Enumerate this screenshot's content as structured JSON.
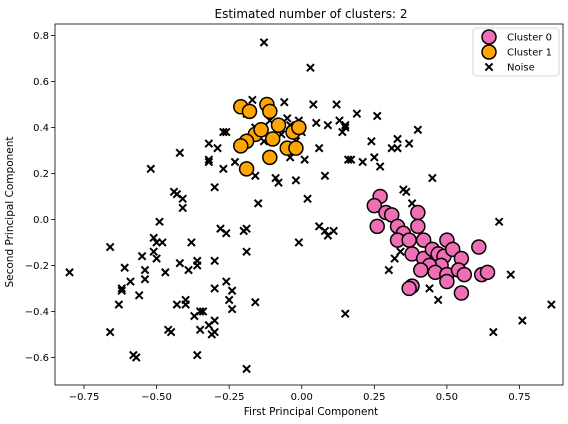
{
  "chart_data": {
    "type": "scatter",
    "title": "Estimated number of clusters: 2",
    "xlabel": "First Principal Component",
    "ylabel": "Second Principal Component",
    "xlim": [
      -0.85,
      0.9
    ],
    "ylim": [
      -0.72,
      0.85
    ],
    "x_ticks": [
      -0.75,
      -0.5,
      -0.25,
      0.0,
      0.25,
      0.5,
      0.75
    ],
    "y_ticks": [
      -0.6,
      -0.4,
      -0.2,
      0.0,
      0.2,
      0.4,
      0.6,
      0.8
    ],
    "x_tick_labels": [
      "−0.75",
      "−0.50",
      "−0.25",
      "0.00",
      "0.25",
      "0.50",
      "0.75"
    ],
    "y_tick_labels": [
      "−0.6",
      "−0.4",
      "−0.2",
      "0.0",
      "0.2",
      "0.4",
      "0.6",
      "0.8"
    ],
    "grid": false,
    "legend_position": "top-right",
    "series": [
      {
        "name": "Cluster 0",
        "marker": "circle",
        "color": "#f06eb4",
        "points": [
          [
            0.27,
            0.1
          ],
          [
            0.25,
            0.06
          ],
          [
            0.29,
            0.03
          ],
          [
            0.31,
            0.02
          ],
          [
            0.26,
            -0.03
          ],
          [
            0.33,
            -0.03
          ],
          [
            0.35,
            -0.06
          ],
          [
            0.33,
            -0.09
          ],
          [
            0.37,
            -0.09
          ],
          [
            0.4,
            0.03
          ],
          [
            0.4,
            -0.03
          ],
          [
            0.42,
            -0.09
          ],
          [
            0.38,
            -0.15
          ],
          [
            0.42,
            -0.17
          ],
          [
            0.45,
            -0.13
          ],
          [
            0.47,
            -0.15
          ],
          [
            0.49,
            -0.16
          ],
          [
            0.5,
            -0.09
          ],
          [
            0.52,
            -0.13
          ],
          [
            0.55,
            -0.17
          ],
          [
            0.48,
            -0.2
          ],
          [
            0.44,
            -0.2
          ],
          [
            0.46,
            -0.23
          ],
          [
            0.5,
            -0.24
          ],
          [
            0.54,
            -0.22
          ],
          [
            0.5,
            -0.27
          ],
          [
            0.56,
            -0.24
          ],
          [
            0.55,
            -0.32
          ],
          [
            0.61,
            -0.12
          ],
          [
            0.62,
            -0.24
          ],
          [
            0.64,
            -0.23
          ],
          [
            0.38,
            -0.29
          ],
          [
            0.41,
            -0.22
          ],
          [
            0.37,
            -0.3
          ]
        ]
      },
      {
        "name": "Cluster 1",
        "marker": "circle",
        "color": "#ffa500",
        "points": [
          [
            -0.21,
            0.49
          ],
          [
            -0.18,
            0.47
          ],
          [
            -0.16,
            0.37
          ],
          [
            -0.19,
            0.34
          ],
          [
            -0.21,
            0.32
          ],
          [
            -0.14,
            0.39
          ],
          [
            -0.12,
            0.5
          ],
          [
            -0.11,
            0.47
          ],
          [
            -0.1,
            0.35
          ],
          [
            -0.08,
            0.41
          ],
          [
            -0.05,
            0.31
          ],
          [
            -0.03,
            0.38
          ],
          [
            -0.02,
            0.31
          ],
          [
            -0.01,
            0.4
          ],
          [
            -0.11,
            0.27
          ],
          [
            -0.19,
            0.22
          ]
        ]
      },
      {
        "name": "Noise",
        "marker": "x",
        "color": "#000000",
        "points": [
          [
            -0.8,
            -0.23
          ],
          [
            -0.66,
            -0.12
          ],
          [
            -0.66,
            -0.49
          ],
          [
            -0.63,
            -0.37
          ],
          [
            -0.62,
            -0.3
          ],
          [
            -0.62,
            -0.31
          ],
          [
            -0.61,
            -0.21
          ],
          [
            -0.59,
            -0.27
          ],
          [
            -0.58,
            -0.59
          ],
          [
            -0.57,
            -0.6
          ],
          [
            -0.56,
            -0.33
          ],
          [
            -0.55,
            -0.16
          ],
          [
            -0.54,
            -0.26
          ],
          [
            -0.54,
            -0.22
          ],
          [
            -0.52,
            0.22
          ],
          [
            -0.51,
            -0.08
          ],
          [
            -0.51,
            -0.14
          ],
          [
            -0.5,
            -0.1
          ],
          [
            -0.5,
            -0.17
          ],
          [
            -0.49,
            -0.01
          ],
          [
            -0.48,
            -0.1
          ],
          [
            -0.47,
            -0.23
          ],
          [
            -0.46,
            -0.48
          ],
          [
            -0.45,
            -0.49
          ],
          [
            -0.44,
            0.12
          ],
          [
            -0.43,
            0.11
          ],
          [
            -0.43,
            -0.37
          ],
          [
            -0.42,
            -0.19
          ],
          [
            -0.42,
            0.29
          ],
          [
            -0.41,
            0.05
          ],
          [
            -0.41,
            0.09
          ],
          [
            -0.4,
            -0.35
          ],
          [
            -0.4,
            -0.37
          ],
          [
            -0.39,
            -0.22
          ],
          [
            -0.38,
            -0.1
          ],
          [
            -0.37,
            -0.42
          ],
          [
            -0.36,
            -0.18
          ],
          [
            -0.36,
            -0.2
          ],
          [
            -0.36,
            -0.59
          ],
          [
            -0.35,
            -0.4
          ],
          [
            -0.35,
            -0.48
          ],
          [
            -0.34,
            -0.4
          ],
          [
            -0.32,
            0.33
          ],
          [
            -0.32,
            0.26
          ],
          [
            -0.32,
            0.25
          ],
          [
            -0.32,
            -0.46
          ],
          [
            -0.31,
            -0.5
          ],
          [
            -0.3,
            -0.49
          ],
          [
            -0.3,
            -0.44
          ],
          [
            -0.3,
            -0.3
          ],
          [
            -0.3,
            -0.18
          ],
          [
            -0.3,
            0.14
          ],
          [
            -0.29,
            0.31
          ],
          [
            -0.28,
            -0.04
          ],
          [
            -0.27,
            0.22
          ],
          [
            -0.27,
            0.38
          ],
          [
            -0.26,
            0.38
          ],
          [
            -0.26,
            -0.27
          ],
          [
            -0.26,
            -0.06
          ],
          [
            -0.25,
            -0.35
          ],
          [
            -0.24,
            -0.31
          ],
          [
            -0.24,
            -0.39
          ],
          [
            -0.23,
            0.25
          ],
          [
            -0.2,
            -0.05
          ],
          [
            -0.19,
            -0.14
          ],
          [
            -0.19,
            -0.65
          ],
          [
            -0.19,
            -0.04
          ],
          [
            -0.19,
            0.46
          ],
          [
            -0.17,
            0.52
          ],
          [
            -0.16,
            0.4
          ],
          [
            -0.16,
            0.19
          ],
          [
            -0.16,
            -0.36
          ],
          [
            -0.15,
            0.07
          ],
          [
            -0.13,
            0.77
          ],
          [
            -0.13,
            0.34
          ],
          [
            -0.12,
            0.5
          ],
          [
            -0.11,
            0.43
          ],
          [
            -0.09,
            0.18
          ],
          [
            -0.08,
            0.16
          ],
          [
            -0.07,
            0.37
          ],
          [
            -0.06,
            0.51
          ],
          [
            -0.05,
            0.44
          ],
          [
            -0.04,
            0.27
          ],
          [
            -0.04,
            0.41
          ],
          [
            -0.02,
            0.34
          ],
          [
            -0.02,
            0.17
          ],
          [
            -0.01,
            0.43
          ],
          [
            -0.01,
            -0.1
          ],
          [
            0.0,
            0.38
          ],
          [
            0.01,
            0.26
          ],
          [
            0.02,
            0.09
          ],
          [
            0.03,
            0.66
          ],
          [
            0.04,
            0.5
          ],
          [
            0.05,
            0.42
          ],
          [
            0.06,
            0.31
          ],
          [
            0.06,
            -0.03
          ],
          [
            0.08,
            -0.05
          ],
          [
            0.08,
            0.19
          ],
          [
            0.09,
            0.41
          ],
          [
            0.09,
            -0.07
          ],
          [
            0.11,
            -0.05
          ],
          [
            0.12,
            0.5
          ],
          [
            0.13,
            0.43
          ],
          [
            0.14,
            0.38
          ],
          [
            0.15,
            0.4
          ],
          [
            0.15,
            0.41
          ],
          [
            0.15,
            -0.41
          ],
          [
            0.16,
            0.26
          ],
          [
            0.17,
            0.26
          ],
          [
            0.19,
            0.46
          ],
          [
            0.21,
            0.25
          ],
          [
            0.24,
            0.34
          ],
          [
            0.25,
            0.27
          ],
          [
            0.26,
            0.45
          ],
          [
            0.3,
            -0.22
          ],
          [
            0.31,
            0.31
          ],
          [
            0.33,
            0.35
          ],
          [
            0.33,
            0.31
          ],
          [
            0.34,
            -0.14
          ],
          [
            0.35,
            0.13
          ],
          [
            0.37,
            0.33
          ],
          [
            0.38,
            0.07
          ],
          [
            0.4,
            0.39
          ],
          [
            0.44,
            -0.3
          ],
          [
            0.45,
            0.18
          ],
          [
            0.47,
            -0.35
          ],
          [
            0.66,
            -0.49
          ],
          [
            0.68,
            -0.01
          ],
          [
            0.72,
            -0.24
          ],
          [
            0.76,
            -0.44
          ],
          [
            0.86,
            -0.37
          ],
          [
            0.35,
            -0.06
          ],
          [
            0.27,
            0.23
          ],
          [
            0.36,
            0.12
          ],
          [
            0.32,
            -0.17
          ]
        ]
      }
    ]
  }
}
